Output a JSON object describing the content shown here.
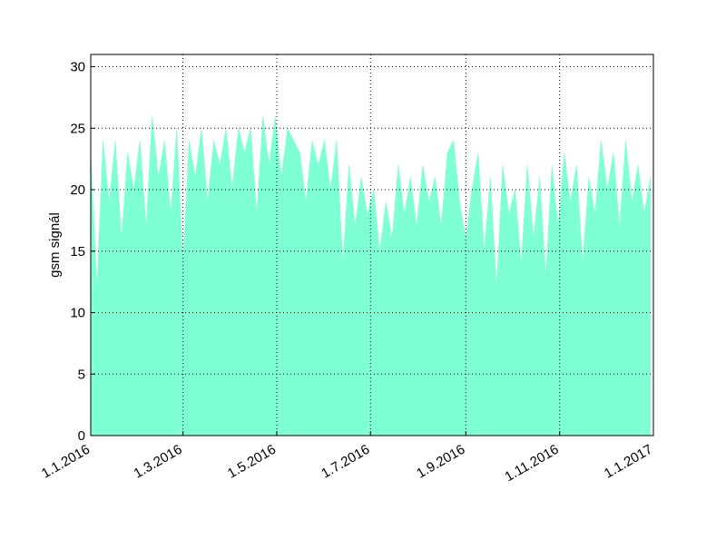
{
  "chart_data": {
    "type": "area",
    "ylabel": "gsm signál",
    "color": "#7fffd4",
    "x": [
      "2016-01-01",
      "2016-01-05",
      "2016-01-09",
      "2016-01-13",
      "2016-01-17",
      "2016-01-21",
      "2016-01-25",
      "2016-01-29",
      "2016-02-02",
      "2016-02-06",
      "2016-02-10",
      "2016-02-14",
      "2016-02-18",
      "2016-02-22",
      "2016-02-26",
      "2016-03-01",
      "2016-03-05",
      "2016-03-09",
      "2016-03-13",
      "2016-03-17",
      "2016-03-21",
      "2016-03-25",
      "2016-03-29",
      "2016-04-02",
      "2016-04-06",
      "2016-04-10",
      "2016-04-14",
      "2016-04-18",
      "2016-04-22",
      "2016-04-26",
      "2016-04-30",
      "2016-05-04",
      "2016-05-08",
      "2016-05-12",
      "2016-05-16",
      "2016-05-20",
      "2016-05-24",
      "2016-05-28",
      "2016-06-01",
      "2016-06-05",
      "2016-06-09",
      "2016-06-13",
      "2016-06-17",
      "2016-06-21",
      "2016-06-25",
      "2016-06-29",
      "2016-07-03",
      "2016-07-07",
      "2016-07-11",
      "2016-07-15",
      "2016-07-19",
      "2016-07-23",
      "2016-07-27",
      "2016-07-31",
      "2016-08-04",
      "2016-08-08",
      "2016-08-12",
      "2016-08-16",
      "2016-08-20",
      "2016-08-24",
      "2016-08-28",
      "2016-09-01",
      "2016-09-05",
      "2016-09-09",
      "2016-09-13",
      "2016-09-17",
      "2016-09-21",
      "2016-09-25",
      "2016-09-29",
      "2016-10-03",
      "2016-10-07",
      "2016-10-11",
      "2016-10-15",
      "2016-10-19",
      "2016-10-23",
      "2016-10-27",
      "2016-10-31",
      "2016-11-04",
      "2016-11-08",
      "2016-11-12",
      "2016-11-16",
      "2016-11-20",
      "2016-11-24",
      "2016-11-28",
      "2016-12-02",
      "2016-12-06",
      "2016-12-10",
      "2016-12-14",
      "2016-12-18",
      "2016-12-22",
      "2016-12-26",
      "2016-12-30"
    ],
    "values": [
      23,
      12,
      24,
      19,
      24,
      16,
      23,
      20,
      24,
      17,
      26,
      21,
      24,
      18,
      25,
      14,
      24,
      21,
      25,
      19,
      24,
      22,
      25,
      20,
      25,
      23,
      25,
      18,
      26,
      22,
      26,
      21,
      25,
      24,
      23,
      19,
      24,
      22,
      24,
      20,
      24,
      14,
      22,
      17,
      21,
      18,
      20,
      15,
      19,
      16,
      22,
      18,
      21,
      17,
      22,
      19,
      21,
      17,
      23,
      24,
      19,
      16,
      20,
      23,
      15,
      21,
      12,
      22,
      18,
      20,
      14,
      22,
      16,
      21,
      13,
      22,
      17,
      23,
      19,
      22,
      14,
      21,
      18,
      24,
      20,
      23,
      17,
      24,
      19,
      22,
      18,
      21
    ],
    "xlim": [
      "2016-01-01",
      "2017-01-01"
    ],
    "xticks": [
      {
        "value": "2016-01-01",
        "label": "1.1.2016"
      },
      {
        "value": "2016-03-01",
        "label": "1.3.2016"
      },
      {
        "value": "2016-05-01",
        "label": "1.5.2016"
      },
      {
        "value": "2016-07-01",
        "label": "1.7.2016"
      },
      {
        "value": "2016-09-01",
        "label": "1.9.2016"
      },
      {
        "value": "2016-11-01",
        "label": "1.11.2016"
      },
      {
        "value": "2017-01-01",
        "label": "1.1.2017"
      }
    ],
    "ylim": [
      0,
      31
    ],
    "yticks": [
      0,
      5,
      10,
      15,
      20,
      25,
      30
    ],
    "grid": true
  }
}
